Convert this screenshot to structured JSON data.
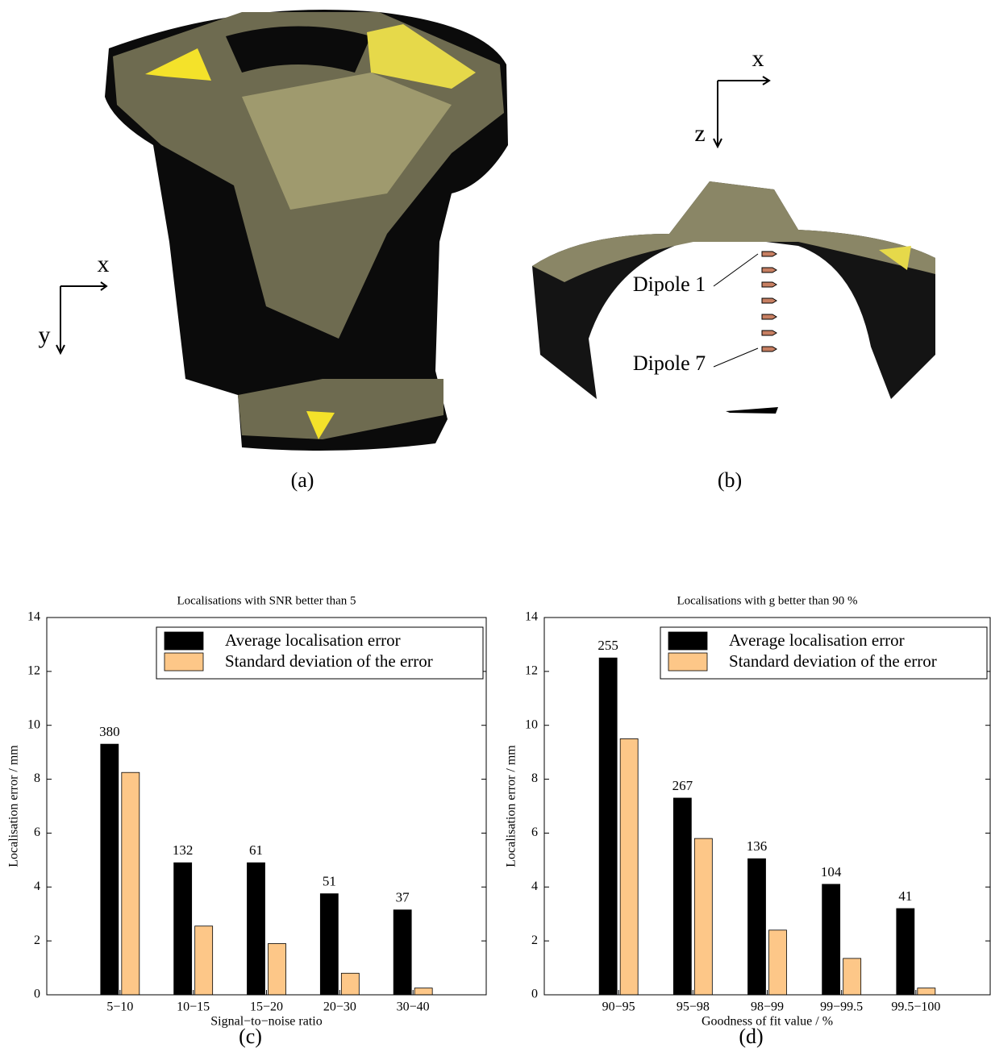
{
  "panels": [
    {
      "caption": "(a)",
      "axes": [
        "x",
        "y"
      ]
    },
    {
      "caption": "(b)",
      "axes": [
        "x",
        "z"
      ],
      "labels": [
        "Dipole 1",
        "Dipole 7"
      ]
    }
  ],
  "chart_data": [
    {
      "type": "bar",
      "title": "Localisations with SNR better than 5",
      "x_label": "Signal−to−noise ratio",
      "y_label": "Localisation error / mm",
      "caption": "(c)",
      "categories": [
        "5−10",
        "10−15",
        "15−20",
        "20−30",
        "30−40"
      ],
      "series": [
        {
          "name": "Average localisation error",
          "color": "#000000",
          "values": [
            9.3,
            4.9,
            4.9,
            3.75,
            3.15
          ]
        },
        {
          "name": "Standard deviation of the error",
          "color": "#fdc788",
          "values": [
            8.25,
            2.55,
            1.9,
            0.8,
            0.25
          ]
        }
      ],
      "bar_annotations": [
        380,
        132,
        61,
        51,
        37
      ],
      "ylim": [
        0,
        14
      ],
      "yticks": [
        0,
        2,
        4,
        6,
        8,
        10,
        12,
        14
      ],
      "legend": "upper right"
    },
    {
      "type": "bar",
      "title": "Localisations with g better than 90 %",
      "x_label": "Goodness of fit value / %",
      "y_label": "Localisation error / mm",
      "caption": "(d)",
      "categories": [
        "90−95",
        "95−98",
        "98−99",
        "99−99.5",
        "99.5−100"
      ],
      "series": [
        {
          "name": "Average localisation error",
          "color": "#000000",
          "values": [
            12.5,
            7.3,
            5.05,
            4.1,
            3.2
          ]
        },
        {
          "name": "Standard deviation of the error",
          "color": "#fdc788",
          "values": [
            9.5,
            5.8,
            2.4,
            1.35,
            0.25
          ]
        }
      ],
      "bar_annotations": [
        255,
        267,
        136,
        104,
        41
      ],
      "ylim": [
        0,
        14
      ],
      "yticks": [
        0,
        2,
        4,
        6,
        8,
        10,
        12,
        14
      ],
      "legend": "upper right"
    }
  ]
}
